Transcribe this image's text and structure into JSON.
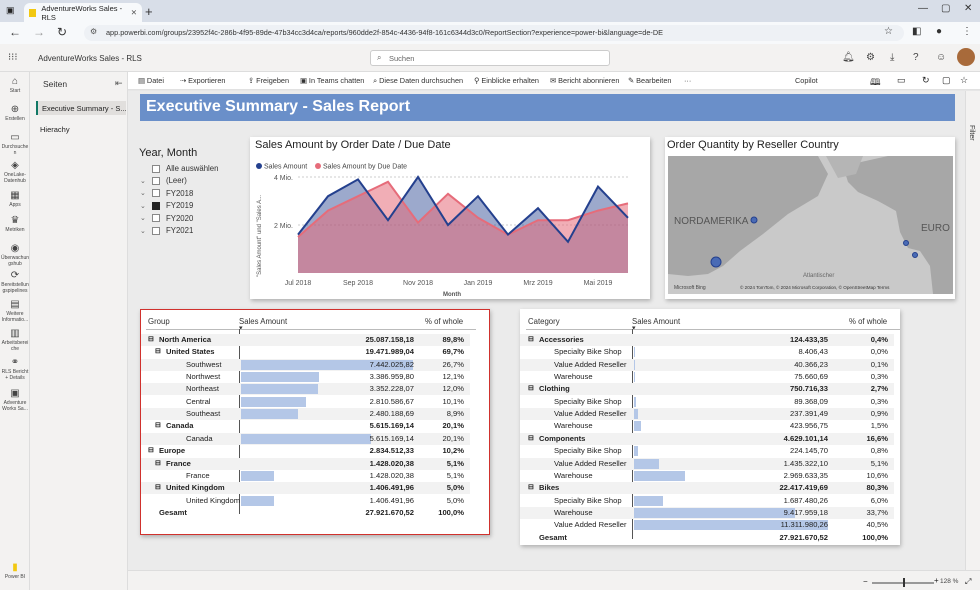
{
  "browser": {
    "tab_title": "AdventureWorks Sales - RLS",
    "url": "app.powerbi.com/groups/23952f4c-286b-4f95-89de-47b34cc3d4ca/reports/960dde2f-854c-4436-94f8-161c6344d3c0/ReportSection?experience=power-bi&language=de-DE"
  },
  "header": {
    "report_name": "AdventureWorks Sales - RLS",
    "search_placeholder": "Suchen"
  },
  "leftnav": [
    {
      "label": "Start"
    },
    {
      "label": "Erstellen"
    },
    {
      "label": "Durchsuche n"
    },
    {
      "label": "OneLake-Datenhub"
    },
    {
      "label": "Apps"
    },
    {
      "label": "Metriken"
    },
    {
      "label": "Überwachun gshub"
    },
    {
      "label": "Bereitstellun gspipelines"
    },
    {
      "label": "Weitere Informatio..."
    },
    {
      "label": "Arbeitsberei che"
    },
    {
      "label": "RLS Bericht + Details"
    },
    {
      "label": "Adventure Works Sa..."
    }
  ],
  "leftnav_footer": "Power BI",
  "pages": {
    "header": "Seiten",
    "items": [
      "Executive Summary - S...",
      "Hierachy"
    ]
  },
  "toolbar": [
    "Datei",
    "Exportieren",
    "Freigeben",
    "In Teams chatten",
    "Diese Daten durchsuchen",
    "Einblicke erhalten",
    "Bericht abonnieren",
    "Bearbeiten",
    "···",
    "Copilot"
  ],
  "banner_title": "Executive Summary - Sales Report",
  "filter_label": "Filter",
  "slicer": {
    "title": "Year, Month",
    "items": [
      {
        "label": "Alle auswählen",
        "checked": false,
        "chev": false
      },
      {
        "label": "(Leer)",
        "checked": false,
        "chev": true
      },
      {
        "label": "FY2018",
        "checked": false,
        "chev": true
      },
      {
        "label": "FY2019",
        "checked": true,
        "chev": true
      },
      {
        "label": "FY2020",
        "checked": false,
        "chev": true
      },
      {
        "label": "FY2021",
        "checked": false,
        "chev": true
      }
    ]
  },
  "chart_data": {
    "type": "area",
    "title": "Sales Amount by Order Date / Due Date",
    "xlabel": "Month",
    "ylabel": "\"Sales Amount\" und \"Sales A...",
    "ticks_x": [
      "Jul 2018",
      "Sep 2018",
      "Nov 2018",
      "Jan 2019",
      "Mrz 2019",
      "Mai 2019"
    ],
    "ticks_y": [
      "4 Mio.",
      "2 Mio."
    ],
    "ylim": [
      0,
      4.5
    ],
    "x": [
      "Jul 2018",
      "Aug 2018",
      "Sep 2018",
      "Okt 2018",
      "Nov 2018",
      "Dez 2018",
      "Jan 2019",
      "Feb 2019",
      "Mrz 2019",
      "Apr 2019",
      "Mai 2019",
      "Jun 2019"
    ],
    "series": [
      {
        "name": "Sales Amount",
        "color": "#24408e",
        "values": [
          1.6,
          3.2,
          3.9,
          2.2,
          4.0,
          2.0,
          3.2,
          1.6,
          2.7,
          1.3,
          3.6,
          2.3
        ]
      },
      {
        "name": "Sales Amount by Due Date",
        "color": "#e66c7a",
        "values": [
          1.5,
          2.6,
          3.2,
          3.8,
          2.1,
          3.3,
          2.3,
          1.6,
          2.2,
          2.2,
          2.6,
          2.9
        ]
      }
    ]
  },
  "map": {
    "title": "Order Quantity by Reseller Country",
    "label_na": "NORDAMERIKA",
    "label_eu": "EURO",
    "label_ocean": "Atlantischer",
    "attribution": "© 2024 TomTom, © 2024 Microsoft Corporation, © OpenStreetMap  Terms",
    "bing": "Microsoft Bing"
  },
  "table1": {
    "headers": [
      "Group",
      "Sales Amount",
      "% of whole"
    ],
    "rows": [
      {
        "label": "North America",
        "value": "25.087.158,18",
        "pct": "89,8%",
        "lvl": 0,
        "bold": true,
        "tog": "⊟",
        "bar": 0
      },
      {
        "label": "United States",
        "value": "19.471.989,04",
        "pct": "69,7%",
        "lvl": 1,
        "bold": true,
        "tog": "⊟",
        "bar": 0
      },
      {
        "label": "Southwest",
        "value": "7.442.025,82",
        "pct": "26,7%",
        "lvl": 2,
        "bold": false,
        "tog": "",
        "bar": 1.0
      },
      {
        "label": "Northwest",
        "value": "3.386.959,80",
        "pct": "12,1%",
        "lvl": 2,
        "bold": false,
        "tog": "",
        "bar": 0.455
      },
      {
        "label": "Northeast",
        "value": "3.352.228,07",
        "pct": "12,0%",
        "lvl": 2,
        "bold": false,
        "tog": "",
        "bar": 0.45
      },
      {
        "label": "Central",
        "value": "2.810.586,67",
        "pct": "10,1%",
        "lvl": 2,
        "bold": false,
        "tog": "",
        "bar": 0.378
      },
      {
        "label": "Southeast",
        "value": "2.480.188,69",
        "pct": "8,9%",
        "lvl": 2,
        "bold": false,
        "tog": "",
        "bar": 0.333
      },
      {
        "label": "Canada",
        "value": "5.615.169,14",
        "pct": "20,1%",
        "lvl": 1,
        "bold": true,
        "tog": "⊟",
        "bar": 0
      },
      {
        "label": "Canada",
        "value": "5.615.169,14",
        "pct": "20,1%",
        "lvl": 2,
        "bold": false,
        "tog": "",
        "bar": 0.755
      },
      {
        "label": "Europe",
        "value": "2.834.512,33",
        "pct": "10,2%",
        "lvl": 0,
        "bold": true,
        "tog": "⊟",
        "bar": 0
      },
      {
        "label": "France",
        "value": "1.428.020,38",
        "pct": "5,1%",
        "lvl": 1,
        "bold": true,
        "tog": "⊟",
        "bar": 0
      },
      {
        "label": "France",
        "value": "1.428.020,38",
        "pct": "5,1%",
        "lvl": 2,
        "bold": false,
        "tog": "",
        "bar": 0.192
      },
      {
        "label": "United Kingdom",
        "value": "1.406.491,96",
        "pct": "5,0%",
        "lvl": 1,
        "bold": true,
        "tog": "⊟",
        "bar": 0
      },
      {
        "label": "United Kingdom",
        "value": "1.406.491,96",
        "pct": "5,0%",
        "lvl": 2,
        "bold": false,
        "tog": "",
        "bar": 0.189
      },
      {
        "label": "Gesamt",
        "value": "27.921.670,52",
        "pct": "100,0%",
        "lvl": 0,
        "bold": true,
        "tog": "",
        "bar": 0
      }
    ]
  },
  "table2": {
    "headers": [
      "Category",
      "Sales Amount",
      "% of whole"
    ],
    "rows": [
      {
        "label": "Accessories",
        "value": "124.433,35",
        "pct": "0,4%",
        "lvl": 0,
        "bold": true,
        "tog": "⊟",
        "bar": 0
      },
      {
        "label": "Specialty Bike Shop",
        "value": "8.406,43",
        "pct": "0,0%",
        "lvl": 1,
        "bold": false,
        "tog": "",
        "bar": 0.001
      },
      {
        "label": "Value Added Reseller",
        "value": "40.366,23",
        "pct": "0,1%",
        "lvl": 1,
        "bold": false,
        "tog": "",
        "bar": 0.004
      },
      {
        "label": "Warehouse",
        "value": "75.660,69",
        "pct": "0,3%",
        "lvl": 1,
        "bold": false,
        "tog": "",
        "bar": 0.007
      },
      {
        "label": "Clothing",
        "value": "750.716,33",
        "pct": "2,7%",
        "lvl": 0,
        "bold": true,
        "tog": "⊟",
        "bar": 0
      },
      {
        "label": "Specialty Bike Shop",
        "value": "89.368,09",
        "pct": "0,3%",
        "lvl": 1,
        "bold": false,
        "tog": "",
        "bar": 0.008
      },
      {
        "label": "Value Added Reseller",
        "value": "237.391,49",
        "pct": "0,9%",
        "lvl": 1,
        "bold": false,
        "tog": "",
        "bar": 0.021
      },
      {
        "label": "Warehouse",
        "value": "423.956,75",
        "pct": "1,5%",
        "lvl": 1,
        "bold": false,
        "tog": "",
        "bar": 0.037
      },
      {
        "label": "Components",
        "value": "4.629.101,14",
        "pct": "16,6%",
        "lvl": 0,
        "bold": true,
        "tog": "⊟",
        "bar": 0
      },
      {
        "label": "Specialty Bike Shop",
        "value": "224.145,70",
        "pct": "0,8%",
        "lvl": 1,
        "bold": false,
        "tog": "",
        "bar": 0.02
      },
      {
        "label": "Value Added Reseller",
        "value": "1.435.322,10",
        "pct": "5,1%",
        "lvl": 1,
        "bold": false,
        "tog": "",
        "bar": 0.127
      },
      {
        "label": "Warehouse",
        "value": "2.969.633,35",
        "pct": "10,6%",
        "lvl": 1,
        "bold": false,
        "tog": "",
        "bar": 0.262
      },
      {
        "label": "Bikes",
        "value": "22.417.419,69",
        "pct": "80,3%",
        "lvl": 0,
        "bold": true,
        "tog": "⊟",
        "bar": 0
      },
      {
        "label": "Specialty Bike Shop",
        "value": "1.687.480,26",
        "pct": "6,0%",
        "lvl": 1,
        "bold": false,
        "tog": "",
        "bar": 0.149
      },
      {
        "label": "Warehouse",
        "value": "9.417.959,18",
        "pct": "33,7%",
        "lvl": 1,
        "bold": false,
        "tog": "",
        "bar": 0.832
      },
      {
        "label": "Value Added Reseller",
        "value": "11.311.980,26",
        "pct": "40,5%",
        "lvl": 1,
        "bold": false,
        "tog": "",
        "bar": 1.0
      },
      {
        "label": "Gesamt",
        "value": "27.921.670,52",
        "pct": "100,0%",
        "lvl": 0,
        "bold": true,
        "tog": "",
        "bar": 0
      }
    ]
  },
  "status": {
    "zoom": "128 %"
  }
}
